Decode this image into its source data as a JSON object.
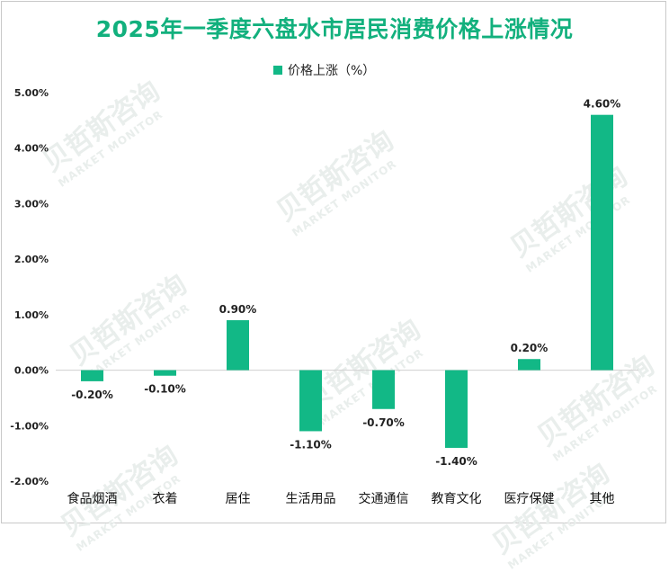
{
  "chart_data": {
    "type": "bar",
    "title": "2025年一季度六盘水市居民消费价格上涨情况",
    "categories": [
      "食品烟酒",
      "衣着",
      "居住",
      "生活用品",
      "交通通信",
      "教育文化",
      "医疗保健",
      "其他"
    ],
    "series": [
      {
        "name": "价格上涨（%）",
        "values": [
          -0.2,
          -0.1,
          0.9,
          -1.1,
          -0.7,
          -1.4,
          0.2,
          4.6
        ],
        "labels": [
          "-0.20%",
          "-0.10%",
          "0.90%",
          "-1.10%",
          "-0.70%",
          "-1.40%",
          "0.20%",
          "4.60%"
        ],
        "color": "#12b886"
      }
    ],
    "ylim": [
      -2,
      5
    ],
    "yticks": [
      "5.00%",
      "4.00%",
      "3.00%",
      "2.00%",
      "1.00%",
      "0.00%",
      "-1.00%",
      "-2.00%"
    ],
    "ytick_values": [
      5,
      4,
      3,
      2,
      1,
      0,
      -1,
      -2
    ],
    "grid": false,
    "legend_position": "top-center"
  },
  "watermark": {
    "cn": "贝哲斯咨询",
    "en": "MARKET MONITOR"
  },
  "colors": {
    "title": "#12b07d",
    "bar": "#12b886",
    "axis": "#d0d0d0"
  }
}
